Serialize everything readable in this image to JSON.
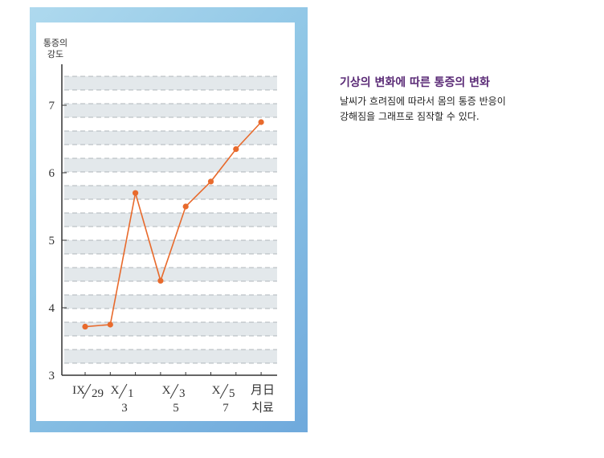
{
  "chart_data": {
    "type": "line",
    "ylabel": [
      "통증의",
      "강도"
    ],
    "yticks": [
      3,
      4,
      5,
      6,
      7
    ],
    "ylim": [
      3,
      7.5
    ],
    "x_tick_labels": [
      {
        "text": "IX",
        "sub": "29",
        "below": ""
      },
      {
        "text": "X",
        "sub": "1",
        "below": "3"
      },
      {
        "text": "X",
        "sub": "3",
        "below": "5"
      },
      {
        "text": "X",
        "sub": "5",
        "below": "7"
      },
      {
        "text": "月日",
        "sub": "",
        "below": "치료"
      }
    ],
    "series": [
      {
        "color": "#e86a2c",
        "points": [
          {
            "x": 0,
            "y": 3.72
          },
          {
            "x": 1,
            "y": 3.75
          },
          {
            "x": 2,
            "y": 5.7
          },
          {
            "x": 3,
            "y": 4.4
          },
          {
            "x": 4,
            "y": 5.5
          },
          {
            "x": 5,
            "y": 5.87
          },
          {
            "x": 6,
            "y": 6.35
          },
          {
            "x": 7,
            "y": 6.75
          }
        ]
      }
    ],
    "grid": "dashed horizontal bands",
    "band_color": "#e3e8eb"
  },
  "caption": {
    "title": "기상의 변화에 따른 통증의 변화",
    "lines": [
      "날씨가 흐려짐에 따라서 몸의 통증 반응이",
      "강해짐을 그래프로 짐작할 수 있다."
    ]
  },
  "colors": {
    "frame": "#8fc6e6",
    "line": "#e86a2c",
    "title": "#5a2a76"
  }
}
